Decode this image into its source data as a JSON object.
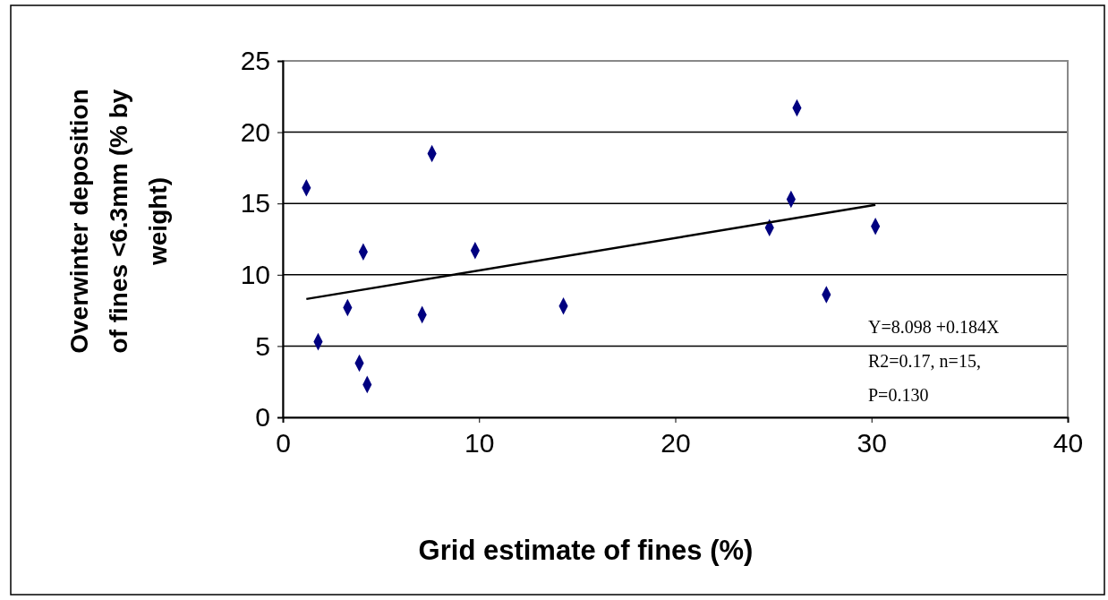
{
  "chart_data": {
    "type": "scatter",
    "xlabel": "Grid estimate of fines (%)",
    "ylabel": "Overwinter deposition of fines <6.3mm (% by weight)",
    "series": [
      {
        "type": "scatter",
        "color": "#000080",
        "marker": "diamond",
        "x": [
          1.2,
          1.8,
          3.3,
          4.1,
          3.9,
          4.3,
          7.1,
          7.6,
          9.8,
          14.3,
          24.8,
          25.9,
          26.2,
          27.7,
          30.2
        ],
        "values": [
          16.1,
          5.3,
          7.7,
          11.6,
          3.8,
          2.3,
          7.2,
          18.5,
          11.7,
          7.8,
          13.3,
          15.3,
          21.7,
          8.6,
          13.4
        ]
      },
      {
        "type": "line",
        "color": "#000000",
        "marker": "none",
        "x": [
          1.2,
          30.2
        ],
        "values": [
          8.3,
          14.9
        ]
      }
    ],
    "xlim": [
      0,
      40
    ],
    "ylim": [
      0,
      25
    ],
    "xticks": [
      0,
      10,
      20,
      30,
      40
    ],
    "yticks": [
      0,
      5,
      10,
      15,
      20,
      25
    ],
    "grid": "y",
    "annotations": [
      "Y=8.098 +0.184X",
      "R2=0.17, n=15,",
      "P=0.130"
    ]
  }
}
